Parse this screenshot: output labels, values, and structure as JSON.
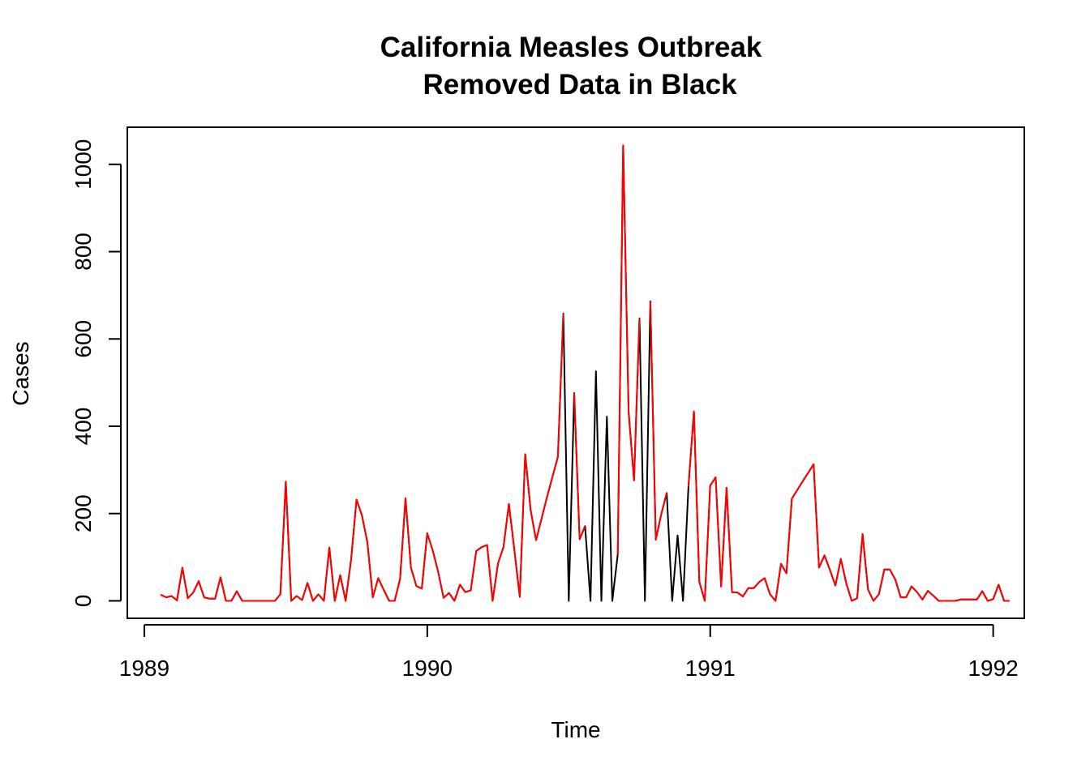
{
  "chart_data": {
    "type": "line",
    "title_line1": "California Measles Outbreak",
    "title_line2": "Removed Data in Black",
    "xlabel": "Time",
    "ylabel": "Cases",
    "xlim": [
      1988.94,
      1992.11
    ],
    "ylim": [
      -40,
      1085
    ],
    "x_ticks": [
      1989,
      1990,
      1991,
      1992
    ],
    "x_tick_labels": [
      "1989",
      "1990",
      "1991",
      "1992"
    ],
    "y_ticks": [
      0,
      200,
      400,
      600,
      800,
      1000
    ],
    "y_tick_labels": [
      "0",
      "200",
      "400",
      "600",
      "800",
      "1000"
    ],
    "grid": false,
    "legend": "none",
    "x_start": 1989.0577,
    "x_step": 0.019231,
    "series": [
      {
        "color": "#000000",
        "values": [
          14,
          8,
          11,
          1,
          76,
          6,
          19,
          45,
          8,
          5,
          5,
          54,
          0,
          0,
          22,
          0,
          0,
          0,
          0,
          0,
          0,
          0,
          15,
          273,
          0,
          11,
          2,
          41,
          0,
          15,
          0,
          122,
          0,
          59,
          0,
          94,
          232,
          196,
          134,
          8,
          52,
          25,
          0,
          0,
          50,
          235,
          76,
          34,
          28,
          155,
          116,
          66,
          7,
          18,
          0,
          37,
          20,
          24,
          114,
          123,
          128,
          0,
          86,
          123,
          222,
          117,
          9,
          336,
          208,
          139,
          188,
          237,
          284,
          330,
          658,
          0,
          476,
          141,
          171,
          0,
          526,
          0,
          422,
          0,
          106,
          1043,
          433,
          276,
          647,
          0,
          686,
          140,
          198,
          247,
          0,
          150,
          0,
          262,
          434,
          44,
          0,
          264,
          283,
          33,
          259,
          20,
          19,
          10,
          29,
          29,
          43,
          52,
          15,
          0,
          85,
          63,
          234,
          254,
          274,
          293,
          313,
          76,
          104,
          71,
          35,
          96,
          40,
          0,
          6,
          153,
          26,
          0,
          15,
          72,
          72,
          49,
          8,
          8,
          33,
          20,
          3,
          23,
          12,
          0,
          0,
          0,
          0,
          3,
          3,
          3,
          3,
          22,
          0,
          4,
          37,
          0,
          0
        ]
      },
      {
        "color": "#ff0000",
        "values": [
          14,
          8,
          11,
          1,
          76,
          6,
          19,
          45,
          8,
          5,
          5,
          54,
          0,
          0,
          22,
          0,
          0,
          0,
          0,
          0,
          0,
          0,
          15,
          273,
          0,
          11,
          2,
          41,
          0,
          15,
          0,
          122,
          0,
          59,
          0,
          94,
          232,
          196,
          134,
          8,
          52,
          25,
          0,
          0,
          50,
          235,
          76,
          34,
          28,
          155,
          116,
          66,
          7,
          18,
          0,
          37,
          20,
          24,
          114,
          123,
          128,
          0,
          86,
          123,
          222,
          117,
          9,
          336,
          208,
          139,
          188,
          237,
          284,
          330,
          658,
          null,
          476,
          141,
          171,
          null,
          526,
          null,
          422,
          null,
          106,
          1043,
          433,
          276,
          647,
          null,
          686,
          140,
          198,
          247,
          null,
          150,
          null,
          262,
          434,
          44,
          0,
          264,
          283,
          33,
          259,
          20,
          19,
          10,
          29,
          29,
          43,
          52,
          15,
          0,
          85,
          63,
          234,
          254,
          274,
          293,
          313,
          76,
          104,
          71,
          35,
          96,
          40,
          0,
          6,
          153,
          26,
          0,
          15,
          72,
          72,
          49,
          8,
          8,
          33,
          20,
          3,
          23,
          12,
          0,
          0,
          0,
          0,
          3,
          3,
          3,
          3,
          22,
          0,
          4,
          37,
          0,
          0
        ]
      }
    ]
  }
}
